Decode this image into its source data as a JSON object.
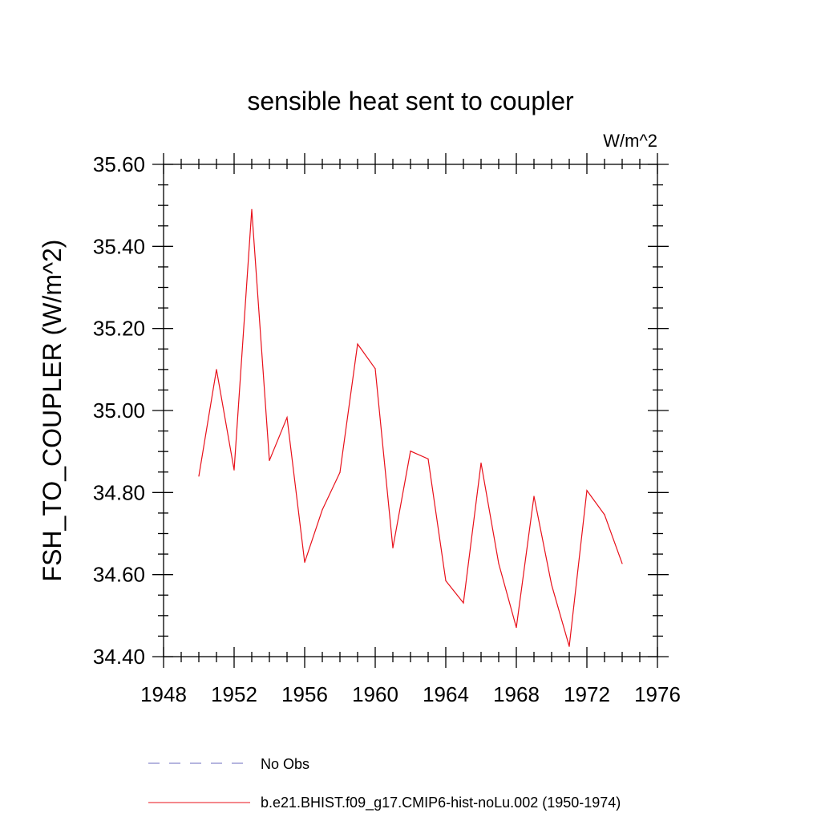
{
  "chart_data": {
    "type": "line",
    "title": "sensible heat sent to coupler",
    "units_label": "W/m^2",
    "ylabel": "FSH_TO_COUPLER  (W/m^2)",
    "xlabel": "",
    "xlim": [
      1948,
      1976
    ],
    "ylim": [
      34.4,
      35.6
    ],
    "x_ticks": [
      1948,
      1952,
      1956,
      1960,
      1964,
      1968,
      1972,
      1976
    ],
    "x_tick_labels": [
      "1948",
      "1952",
      "1956",
      "1960",
      "1964",
      "1968",
      "1972",
      "1976"
    ],
    "y_ticks": [
      34.4,
      34.6,
      34.8,
      35.0,
      35.2,
      35.4,
      35.6
    ],
    "y_tick_labels": [
      "34.40",
      "34.60",
      "34.80",
      "35.00",
      "35.20",
      "35.40",
      "35.60"
    ],
    "x_minor_step": 1,
    "y_minor_step": 0.05,
    "grid": false,
    "legend_position": "bottom",
    "series": [
      {
        "name": "No Obs",
        "color": "#6b6bbf",
        "dash": "dashed",
        "x": [],
        "values": []
      },
      {
        "name": "b.e21.BHIST.f09_g17.CMIP6-hist-noLu.002 (1950-1974)",
        "color": "#e8101a",
        "dash": "solid",
        "x": [
          1950,
          1951,
          1952,
          1953,
          1954,
          1955,
          1956,
          1957,
          1958,
          1959,
          1960,
          1961,
          1962,
          1963,
          1964,
          1965,
          1966,
          1967,
          1968,
          1969,
          1970,
          1971,
          1972,
          1973,
          1974
        ],
        "values": [
          34.84,
          35.1,
          34.855,
          35.49,
          34.878,
          34.983,
          34.63,
          34.758,
          34.849,
          35.162,
          35.102,
          34.665,
          34.901,
          34.882,
          34.585,
          34.531,
          34.872,
          34.627,
          34.471,
          34.791,
          34.575,
          34.425,
          34.805,
          34.746,
          34.627
        ]
      }
    ]
  }
}
